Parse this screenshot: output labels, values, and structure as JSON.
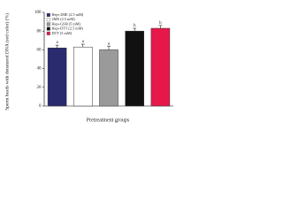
{
  "chart_data": {
    "type": "bar",
    "y_label": "Sperm heads with denatured DNA (red color) (%)",
    "x_label": "Pretreatment groups",
    "categories": [
      "Hep+2ME (2.5 mM)",
      "2ME (2.5 mM)",
      "Hep+GSH (5 mM)",
      "Hep+DTT (2.5 mM)",
      "DTT (5 mM)"
    ],
    "values": [
      62,
      63,
      60,
      80,
      83
    ],
    "errors": [
      3,
      3,
      4,
      3,
      3
    ],
    "annotations": [
      "a",
      "a",
      "a",
      "b",
      "b"
    ],
    "colors": [
      "#2a2a6e",
      "#ffffff",
      "#9a9a9a",
      "#111111",
      "#e8174a"
    ],
    "ylim": [
      0,
      100
    ],
    "yticks": [
      0,
      20,
      40,
      60,
      80,
      100
    ]
  }
}
